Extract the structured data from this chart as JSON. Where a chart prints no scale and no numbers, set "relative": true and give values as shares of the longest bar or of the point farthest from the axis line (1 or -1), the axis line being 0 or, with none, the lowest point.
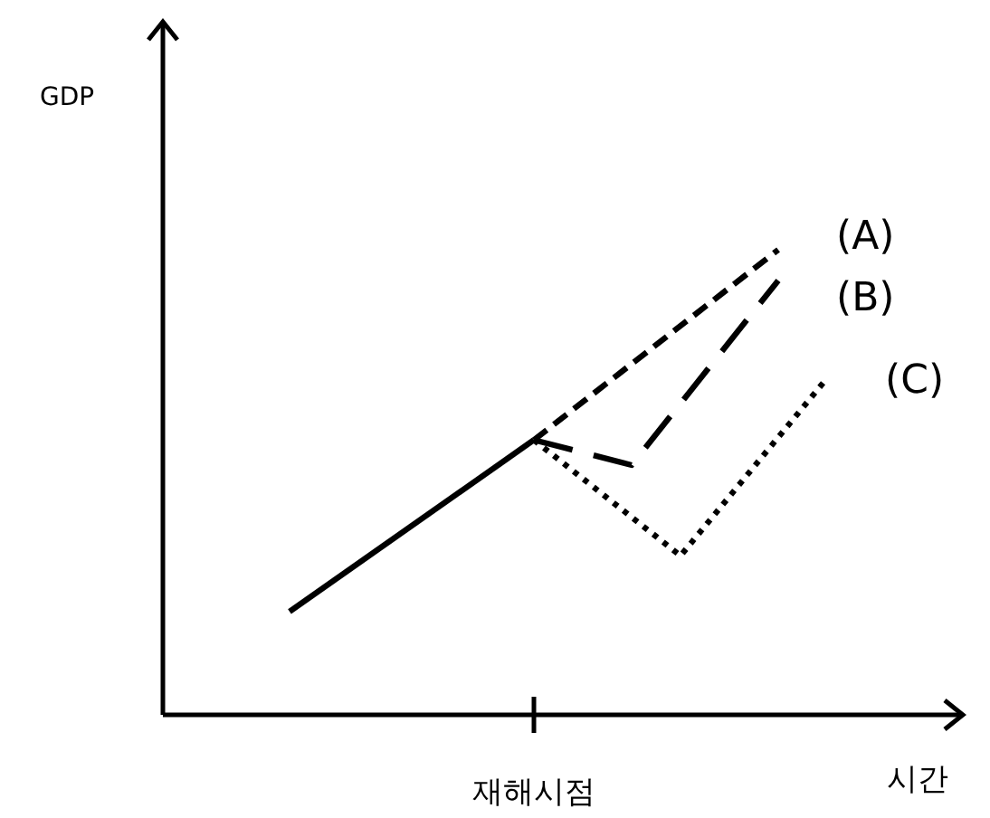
{
  "chart_data": {
    "type": "line",
    "relative": true,
    "xlabel": "시간",
    "color": "#000000",
    "categories": [
      null,
      null,
      null,
      null,
      null,
      null,
      null,
      null,
      null,
      null,
      null,
      null
    ],
    "annotations": [
      "GDP",
      "재해시점"
    ],
    "series": [
      {
        "values": [
          0.222,
          null,
          null,
          null,
          null,
          0.591,
          null,
          null,
          null,
          null,
          null,
          null
        ],
        "color": "#000000",
        "line_style": "solid"
      },
      {
        "name": "(A)",
        "values": [
          null,
          null,
          null,
          null,
          null,
          0.591,
          null,
          null,
          null,
          null,
          1,
          null
        ],
        "color": "#000000",
        "line_style": "dashed"
      },
      {
        "name": "(B)",
        "values": [
          null,
          null,
          null,
          null,
          null,
          0.591,
          null,
          0.537,
          null,
          null,
          0.934,
          null
        ],
        "color": "#000000",
        "line_style": "longdash"
      },
      {
        "name": "(C)",
        "values": [
          null,
          null,
          null,
          null,
          null,
          0.591,
          null,
          null,
          0.342,
          null,
          null,
          0.724
        ],
        "color": "#000000",
        "line_style": "dotted"
      }
    ]
  }
}
